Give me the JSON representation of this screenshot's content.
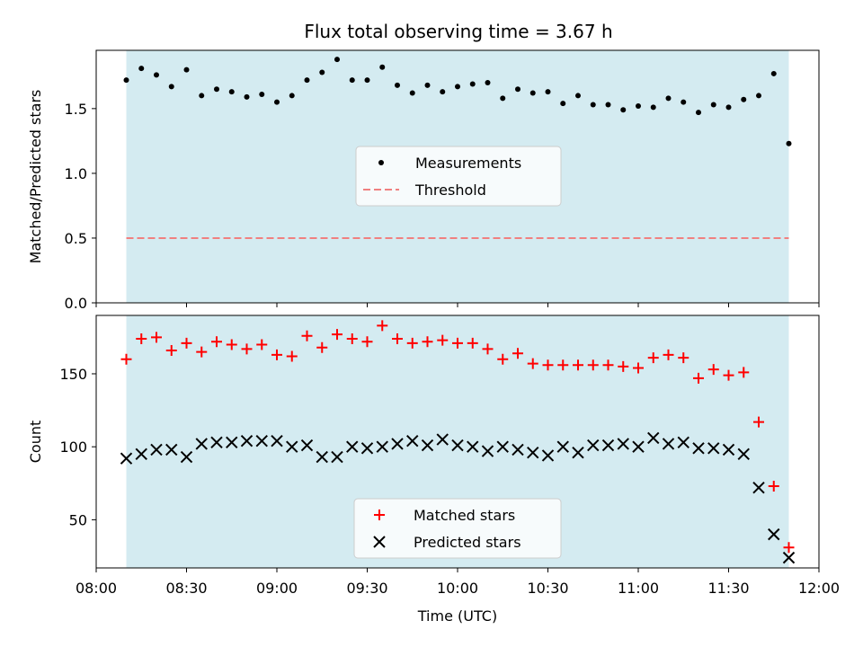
{
  "title": "Flux total observing time = 3.67 h",
  "colors": {
    "shade": "#d4ebf1",
    "measurement": "#000000",
    "threshold": "#f08080",
    "matched": "#ff0000",
    "predicted": "#000000"
  },
  "chart_data": [
    {
      "type": "scatter",
      "ylabel": "Matched/Predicted stars",
      "xlim": [
        "08:00",
        "12:00"
      ],
      "ylim": [
        0,
        1.95
      ],
      "yticks": [
        0.0,
        0.5,
        1.0,
        1.5
      ],
      "ytick_labels": [
        "0.0",
        "0.5",
        "1.0",
        "1.5"
      ],
      "shaded_span": [
        "08:10",
        "11:50"
      ],
      "legend": {
        "placement": "center",
        "entries": [
          "Measurements",
          "Threshold"
        ]
      },
      "threshold": {
        "name": "Threshold",
        "y": 0.5,
        "x": [
          "08:10",
          "11:50"
        ]
      },
      "series": [
        {
          "name": "Measurements",
          "marker": "dot",
          "x": [
            "08:10",
            "08:15",
            "08:20",
            "08:25",
            "08:30",
            "08:35",
            "08:40",
            "08:45",
            "08:50",
            "08:55",
            "09:00",
            "09:05",
            "09:10",
            "09:15",
            "09:20",
            "09:25",
            "09:30",
            "09:35",
            "09:40",
            "09:45",
            "09:50",
            "09:55",
            "10:00",
            "10:05",
            "10:10",
            "10:15",
            "10:20",
            "10:25",
            "10:30",
            "10:35",
            "10:40",
            "10:45",
            "10:50",
            "10:55",
            "11:00",
            "11:05",
            "11:10",
            "11:15",
            "11:20",
            "11:25",
            "11:30",
            "11:35",
            "11:40",
            "11:45",
            "11:50"
          ],
          "y": [
            1.72,
            1.81,
            1.76,
            1.67,
            1.8,
            1.6,
            1.65,
            1.63,
            1.59,
            1.61,
            1.55,
            1.6,
            1.72,
            1.78,
            1.88,
            1.72,
            1.72,
            1.82,
            1.68,
            1.62,
            1.68,
            1.63,
            1.67,
            1.69,
            1.7,
            1.58,
            1.65,
            1.62,
            1.63,
            1.54,
            1.6,
            1.53,
            1.53,
            1.49,
            1.52,
            1.51,
            1.58,
            1.55,
            1.47,
            1.53,
            1.51,
            1.57,
            1.6,
            1.77,
            1.23
          ]
        }
      ]
    },
    {
      "type": "scatter",
      "xlabel": "Time (UTC)",
      "ylabel": "Count",
      "xlim": [
        "08:00",
        "12:00"
      ],
      "xticks": [
        "08:00",
        "08:30",
        "09:00",
        "09:30",
        "10:00",
        "10:30",
        "11:00",
        "11:30",
        "12:00"
      ],
      "ylim": [
        17,
        190
      ],
      "yticks": [
        50,
        100,
        150
      ],
      "ytick_labels": [
        "50",
        "100",
        "150"
      ],
      "shaded_span": [
        "08:10",
        "11:50"
      ],
      "legend": {
        "placement": "lower center",
        "entries": [
          "Matched stars",
          "Predicted stars"
        ]
      },
      "series": [
        {
          "name": "Matched stars",
          "marker": "plus",
          "x": [
            "08:10",
            "08:15",
            "08:20",
            "08:25",
            "08:30",
            "08:35",
            "08:40",
            "08:45",
            "08:50",
            "08:55",
            "09:00",
            "09:05",
            "09:10",
            "09:15",
            "09:20",
            "09:25",
            "09:30",
            "09:35",
            "09:40",
            "09:45",
            "09:50",
            "09:55",
            "10:00",
            "10:05",
            "10:10",
            "10:15",
            "10:20",
            "10:25",
            "10:30",
            "10:35",
            "10:40",
            "10:45",
            "10:50",
            "10:55",
            "11:00",
            "11:05",
            "11:10",
            "11:15",
            "11:20",
            "11:25",
            "11:30",
            "11:35",
            "11:40",
            "11:45",
            "11:50"
          ],
          "y": [
            160,
            174,
            175,
            166,
            171,
            165,
            172,
            170,
            167,
            170,
            163,
            162,
            176,
            168,
            177,
            174,
            172,
            183,
            174,
            171,
            172,
            173,
            171,
            171,
            167,
            160,
            164,
            157,
            156,
            156,
            156,
            156,
            156,
            155,
            154,
            161,
            163,
            161,
            147,
            153,
            149,
            151,
            117,
            73,
            31
          ]
        },
        {
          "name": "Predicted stars",
          "marker": "x",
          "x": [
            "08:10",
            "08:15",
            "08:20",
            "08:25",
            "08:30",
            "08:35",
            "08:40",
            "08:45",
            "08:50",
            "08:55",
            "09:00",
            "09:05",
            "09:10",
            "09:15",
            "09:20",
            "09:25",
            "09:30",
            "09:35",
            "09:40",
            "09:45",
            "09:50",
            "09:55",
            "10:00",
            "10:05",
            "10:10",
            "10:15",
            "10:20",
            "10:25",
            "10:30",
            "10:35",
            "10:40",
            "10:45",
            "10:50",
            "10:55",
            "11:00",
            "11:05",
            "11:10",
            "11:15",
            "11:20",
            "11:25",
            "11:30",
            "11:35",
            "11:40",
            "11:45",
            "11:50"
          ],
          "y": [
            92,
            95,
            98,
            98,
            93,
            102,
            103,
            103,
            104,
            104,
            104,
            100,
            101,
            93,
            93,
            100,
            99,
            100,
            102,
            104,
            101,
            105,
            101,
            100,
            97,
            100,
            98,
            96,
            94,
            100,
            96,
            101,
            101,
            102,
            100,
            106,
            102,
            103,
            99,
            99,
            98,
            95,
            72,
            40,
            24
          ]
        }
      ]
    }
  ]
}
